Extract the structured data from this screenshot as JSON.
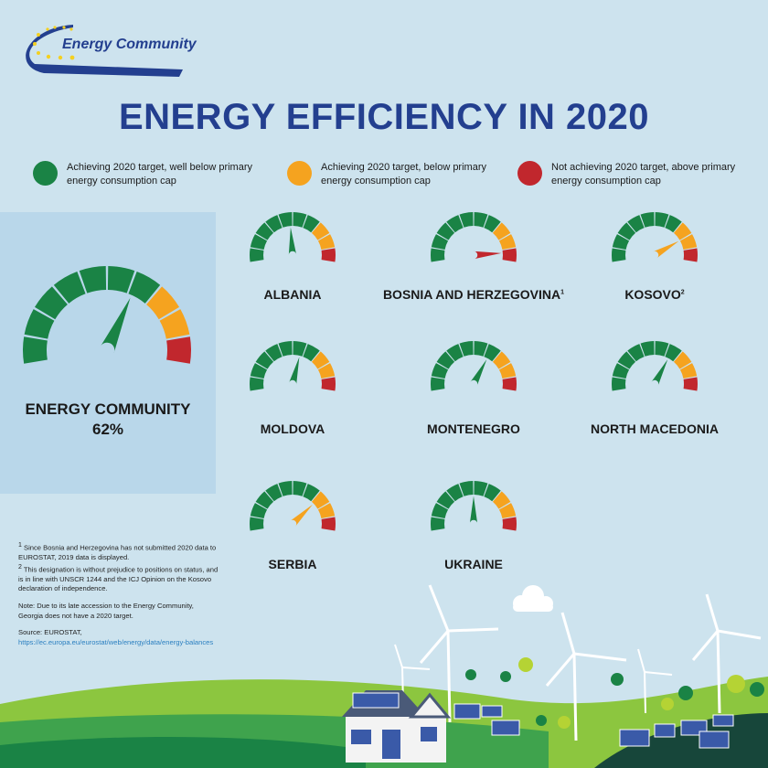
{
  "logo": {
    "text": "Energy Community"
  },
  "title": "ENERGY EFFICIENCY IN 2020",
  "colors": {
    "green": "#1a8345",
    "orange": "#f5a31f",
    "red": "#c1272d",
    "title": "#233f8f",
    "background": "#cde3ee"
  },
  "legend": [
    {
      "color": "#1a8345",
      "text": "Achieving 2020 target, well below primary energy consumption cap"
    },
    {
      "color": "#f5a31f",
      "text": "Achieving 2020 target, below primary energy consumption cap"
    },
    {
      "color": "#c1272d",
      "text": "Not achieving 2020 target, above primary energy consumption cap"
    }
  ],
  "energy_community": {
    "label": "ENERGY COMMUNITY",
    "value": "62%",
    "needle_level": 0.62,
    "needle_color": "#1a8345"
  },
  "gauges": [
    {
      "name": "ALBANIA",
      "sup": "",
      "needle_level": 0.48,
      "needle_color": "#1a8345"
    },
    {
      "name": "BOSNIA AND HERZEGOVINA",
      "sup": "1",
      "needle_level": 0.93,
      "needle_color": "#c1272d"
    },
    {
      "name": "KOSOVO",
      "sup": "2",
      "needle_level": 0.8,
      "needle_color": "#f5a31f"
    },
    {
      "name": "MOLDOVA",
      "sup": "",
      "needle_level": 0.57,
      "needle_color": "#1a8345"
    },
    {
      "name": "MONTENEGRO",
      "sup": "",
      "needle_level": 0.64,
      "needle_color": "#1a8345"
    },
    {
      "name": "NORTH MACEDONIA",
      "sup": "",
      "needle_level": 0.64,
      "needle_color": "#1a8345"
    },
    {
      "name": "SERBIA",
      "sup": "",
      "needle_level": 0.73,
      "needle_color": "#f5a31f"
    },
    {
      "name": "UKRAINE",
      "sup": "",
      "needle_level": 0.5,
      "needle_color": "#1a8345"
    }
  ],
  "notes": {
    "note1_sup": "1",
    "note1": "Since Bosnia and Herzegovina has not submitted 2020 data to EUROSTAT, 2019 data is displayed.",
    "note2_sup": "2",
    "note2": "This designation is without prejudice to positions on status, and is in line with UNSCR 1244 and the ICJ Opinion on the Kosovo declaration of independence.",
    "note3": "Note: Due to its late accession to the Energy Community, Georgia does not have a 2020 target.",
    "source_label": "Source: EUROSTAT, ",
    "source_link": "https://ec.europa.eu/eurostat/web/energy/data/energy-balances"
  }
}
